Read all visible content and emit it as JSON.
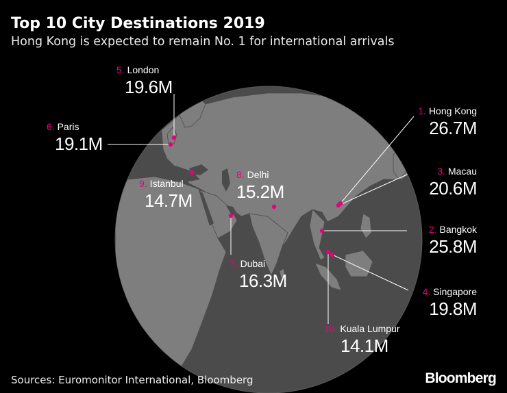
{
  "header": {
    "title": "Top 10 City Destinations 2019",
    "subtitle": "Hong Kong is expected to remain No. 1 for international arrivals"
  },
  "colors": {
    "accent": "#e8007d",
    "globe": "#4b4b4b",
    "land": "#8a8a8a",
    "background": "#000000"
  },
  "cities": [
    {
      "rank": "1.",
      "name": "Hong Kong",
      "value": "26.7M"
    },
    {
      "rank": "2.",
      "name": "Bangkok",
      "value": "25.8M"
    },
    {
      "rank": "3.",
      "name": "Macau",
      "value": "20.6M"
    },
    {
      "rank": "4.",
      "name": "Singapore",
      "value": "19.8M"
    },
    {
      "rank": "5.",
      "name": "London",
      "value": "19.6M"
    },
    {
      "rank": "6.",
      "name": "Paris",
      "value": "19.1M"
    },
    {
      "rank": "7.",
      "name": "Dubai",
      "value": "16.3M"
    },
    {
      "rank": "8.",
      "name": "Delhi",
      "value": "15.2M"
    },
    {
      "rank": "9.",
      "name": "Istanbul",
      "value": "14.7M"
    },
    {
      "rank": "10.",
      "name": "Kuala Lumpur",
      "value": "14.1M"
    }
  ],
  "footer": {
    "source": "Sources: Euromonitor International, Bloomberg",
    "brand": "Bloomberg"
  }
}
